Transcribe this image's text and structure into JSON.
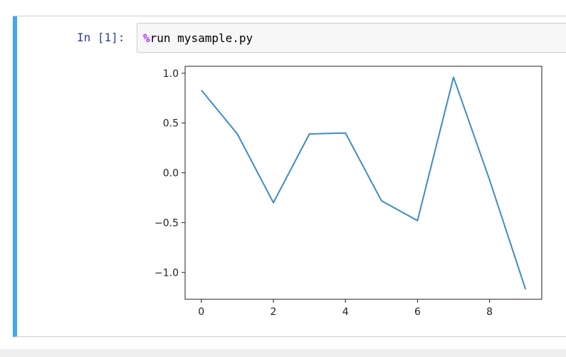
{
  "cell": {
    "prompt": "In [1]:",
    "code_magic": "%",
    "code_rest": "run mysample.py"
  },
  "colors": {
    "cell_border": "#42a5f5",
    "prompt": "#303f9f",
    "magic": "#aa22ff",
    "line": "#3c8dc4"
  },
  "chart_data": {
    "type": "line",
    "title": "",
    "xlabel": "",
    "ylabel": "",
    "xlim": [
      -0.45,
      9.45
    ],
    "ylim": [
      -1.27,
      1.07
    ],
    "xticks": [
      0,
      2,
      4,
      6,
      8
    ],
    "xtick_labels": [
      "0",
      "2",
      "4",
      "6",
      "8"
    ],
    "yticks": [
      1.0,
      0.5,
      0.0,
      -0.5,
      -1.0
    ],
    "ytick_labels": [
      "1.0",
      "0.5",
      "0.0",
      "−0.5",
      "−1.0"
    ],
    "grid": false,
    "legend": false,
    "series": [
      {
        "x": [
          0,
          1,
          2,
          3,
          4,
          5,
          6,
          7,
          8,
          9
        ],
        "values": [
          0.83,
          0.39,
          -0.3,
          0.39,
          0.4,
          -0.28,
          -0.48,
          0.96,
          -0.07,
          -1.17
        ]
      }
    ]
  }
}
